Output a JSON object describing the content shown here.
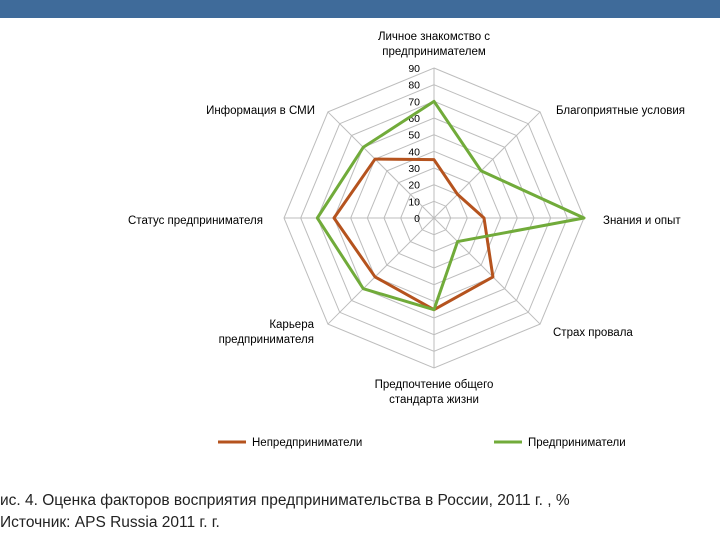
{
  "header": {
    "bar_color": "#3f6b9a"
  },
  "chart_data": {
    "type": "radar",
    "categories": [
      "Личное знакомство с предпринимателем",
      "Благоприятные условия",
      "Знания и опыт",
      "Страх провала",
      "Предпочтение общего стандарта жизни",
      "Карьера предпринимателя",
      "Статус предпринимателя",
      "Информация в СМИ"
    ],
    "category_lines": [
      [
        "Личное знакомство с",
        "предпринимателем"
      ],
      [
        "Благоприятные условия"
      ],
      [
        "Знания и опыт"
      ],
      [
        "Страх провала"
      ],
      [
        "Предпочтение общего",
        "стандарта жизни"
      ],
      [
        "Карьера",
        "предпринимателя"
      ],
      [
        "Статус предпринимателя"
      ],
      [
        "Информация в СМИ"
      ]
    ],
    "rlim": [
      0,
      90
    ],
    "ticks": [
      "0",
      "10",
      "20",
      "30",
      "40",
      "50",
      "60",
      "70",
      "80",
      "90"
    ],
    "series": [
      {
        "name": "Непредприниматели",
        "color": "#b5531e",
        "values": [
          35,
          20,
          30,
          50,
          55,
          50,
          60,
          50
        ]
      },
      {
        "name": "Предприниматели",
        "color": "#71ab3a",
        "values": [
          70,
          40,
          90,
          20,
          55,
          60,
          70,
          60
        ]
      }
    ],
    "grid": true,
    "legend_position": "bottom"
  },
  "caption": {
    "line1": "ис. 4. Оценка факторов восприятия предпринимательства в России, 2011 г. , %",
    "line2": "Источник: APS Russia 2011 г. г."
  }
}
